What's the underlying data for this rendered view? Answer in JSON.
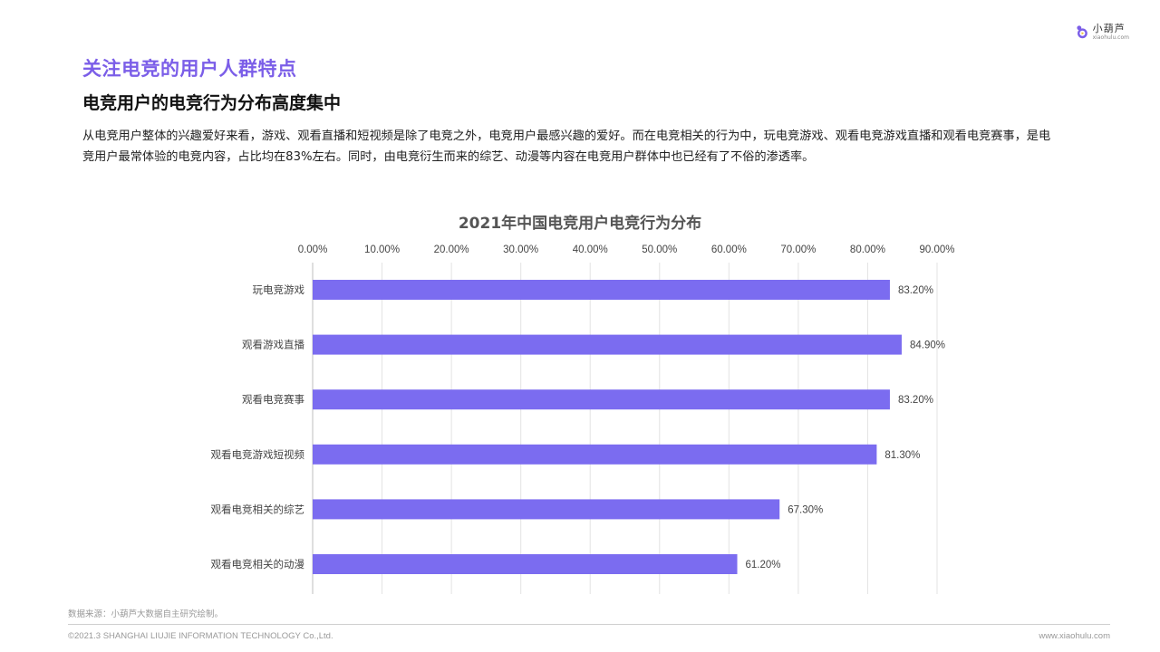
{
  "brand": {
    "name_cn": "小葫芦",
    "name_en": "xiaohulu.com",
    "accent_color": "#7b5ee8"
  },
  "header": {
    "title": "关注电竞的用户人群特点",
    "subtitle": "电竞用户的电竞行为分布高度集中"
  },
  "summary": "从电竞用户整体的兴趣爱好来看，游戏、观看直播和短视频是除了电竞之外，电竞用户最感兴趣的爱好。而在电竞相关的行为中，玩电竞游戏、观看电竞游戏直播和观看电竞赛事，是电竞用户最常体验的电竞内容，占比均在83%左右。同时，由电竞衍生而来的综艺、动漫等内容在电竞用户群体中也已经有了不俗的渗透率。",
  "chart_data": {
    "type": "bar",
    "orientation": "horizontal",
    "title": "2021年中国电竞用户电竞行为分布",
    "categories": [
      "玩电竞游戏",
      "观看游戏直播",
      "观看电竞赛事",
      "观看电竞游戏短视频",
      "观看电竞相关的综艺",
      "观看电竞相关的动漫"
    ],
    "values": [
      83.2,
      84.9,
      83.2,
      81.3,
      67.3,
      61.2
    ],
    "data_labels": [
      "83.20%",
      "84.90%",
      "83.20%",
      "81.30%",
      "67.30%",
      "61.20%"
    ],
    "x_ticks": [
      "0.00%",
      "10.00%",
      "20.00%",
      "30.00%",
      "40.00%",
      "50.00%",
      "60.00%",
      "70.00%",
      "80.00%",
      "90.00%"
    ],
    "xlim": [
      0,
      90
    ],
    "axis_position": "top",
    "grid": true,
    "bar_color": "#7b6cf0"
  },
  "footer": {
    "source": "数据来源：小葫芦大数据自主研究绘制。",
    "copyright": "©2021.3 SHANGHAI LIUJIE INFORMATION  TECHNOLOGY Co.,Ltd.",
    "website": "www.xiaohulu.com"
  }
}
